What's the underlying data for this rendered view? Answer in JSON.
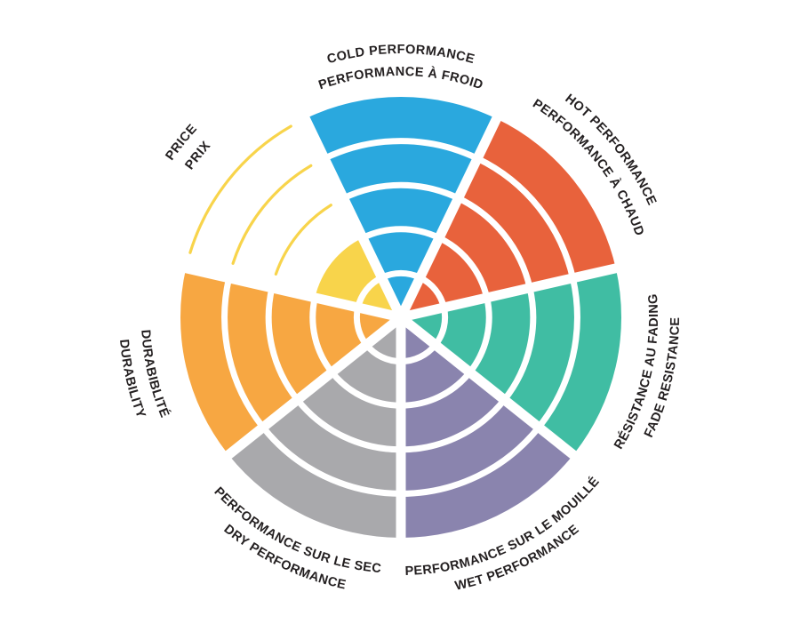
{
  "page": {
    "background_color": "#FFFFFF"
  },
  "chart_data": {
    "type": "pie",
    "variant": "radial-rating-wheel",
    "title": "",
    "legend": "none",
    "grid": "concentric-ring-separators",
    "rating_scale": {
      "min": 0,
      "max": 5
    },
    "divider_color": "#FFFFFF",
    "label_color": "#231F20",
    "categories": [
      "COLD PERFORMANCE / PERFORMANCE À FROID",
      "HOT PERFORMANCE / PERFORMANCE À CHAUD",
      "RÉSISTANCE AU FADING / FADE RESISTANCE",
      "PERFORMANCE SUR LE MOUILLÉ / WET PERFORMANCE",
      "PERFORMANCE SUR LE SEC / DRY PERFORMANCE",
      "DURABIBLITÉ / DURABILITY",
      "PRICE / PRIX"
    ],
    "values": [
      5,
      5,
      5,
      5,
      5,
      5,
      2
    ],
    "sectors": [
      {
        "id": "cold-performance",
        "lines": [
          "COLD PERFORMANCE",
          "PERFORMANCE À FROID"
        ],
        "value": 5,
        "color": "#2AA8DE"
      },
      {
        "id": "hot-performance",
        "lines": [
          "HOT PERFORMANCE",
          "PERFORMANCE À CHAUD"
        ],
        "value": 5,
        "color": "#E8623C"
      },
      {
        "id": "fade-resistance",
        "lines": [
          "RÉSISTANCE AU FADING",
          "FADE RESISTANCE"
        ],
        "value": 5,
        "color": "#40BDA3"
      },
      {
        "id": "wet-performance",
        "lines": [
          "PERFORMANCE SUR LE MOUILLÉ",
          "WET PERFORMANCE"
        ],
        "value": 5,
        "color": "#8A84AE"
      },
      {
        "id": "dry-performance",
        "lines": [
          "PERFORMANCE SUR LE SEC",
          "DRY PERFORMANCE"
        ],
        "value": 5,
        "color": "#A9A9AC"
      },
      {
        "id": "durability",
        "lines": [
          "DURABIBLITÉ",
          "DURABILITY"
        ],
        "value": 5,
        "color": "#F7A742"
      },
      {
        "id": "price",
        "lines": [
          "PRICE",
          "PRIX"
        ],
        "value": 2,
        "color": "#F8D44B",
        "unfilled_style": "outline-arcs"
      }
    ]
  }
}
